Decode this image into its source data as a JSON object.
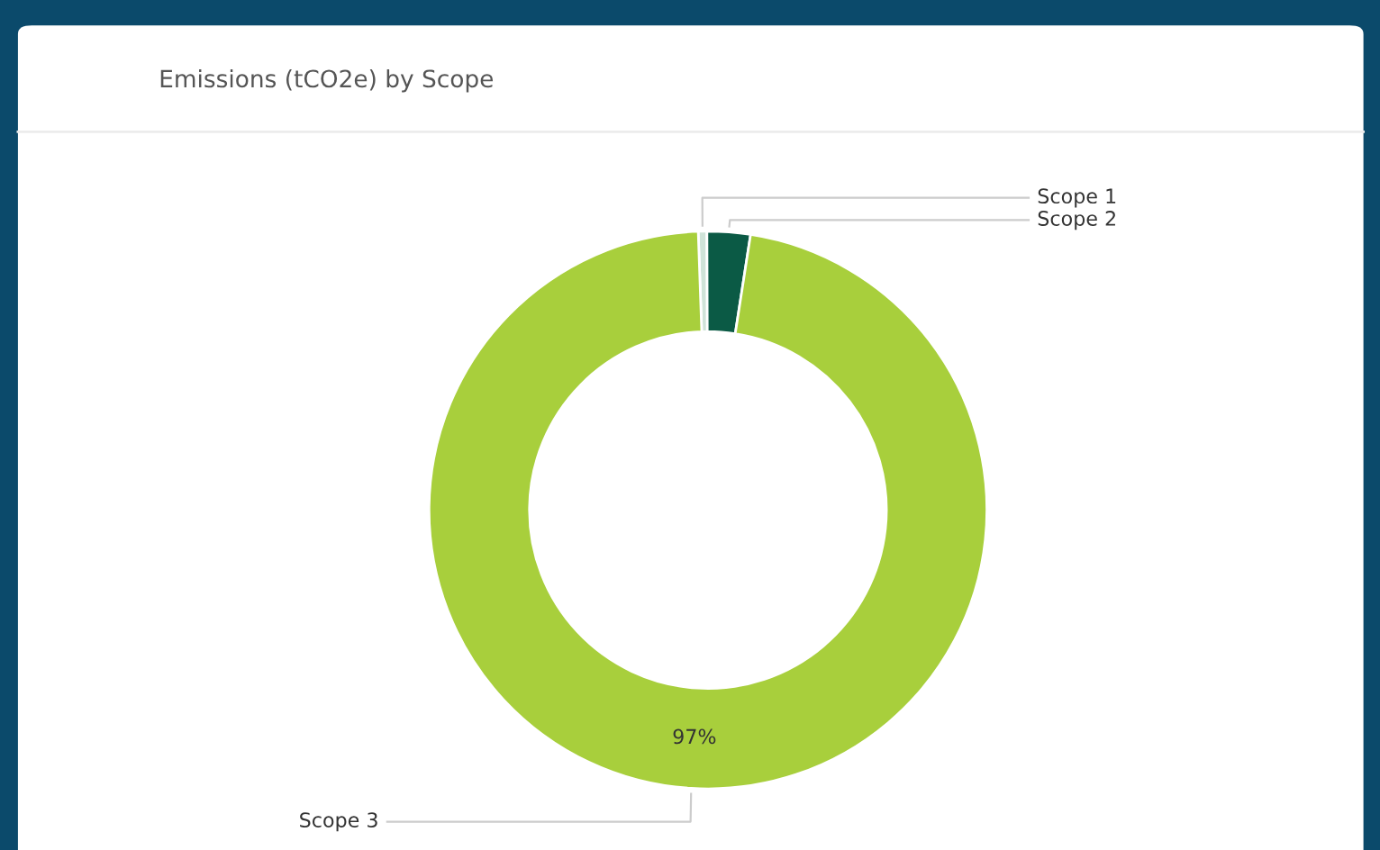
{
  "chart_data": {
    "type": "donut",
    "title": "Emissions (tCO2e) by Scope",
    "categories": [
      "Scope 1",
      "Scope 2",
      "Scope 3"
    ],
    "values": [
      0.5,
      2.5,
      97
    ],
    "colors": [
      "#cfe3d8",
      "#0b5a45",
      "#a8cf3c"
    ],
    "value_labels": [
      null,
      null,
      "97%"
    ],
    "legend": false
  }
}
